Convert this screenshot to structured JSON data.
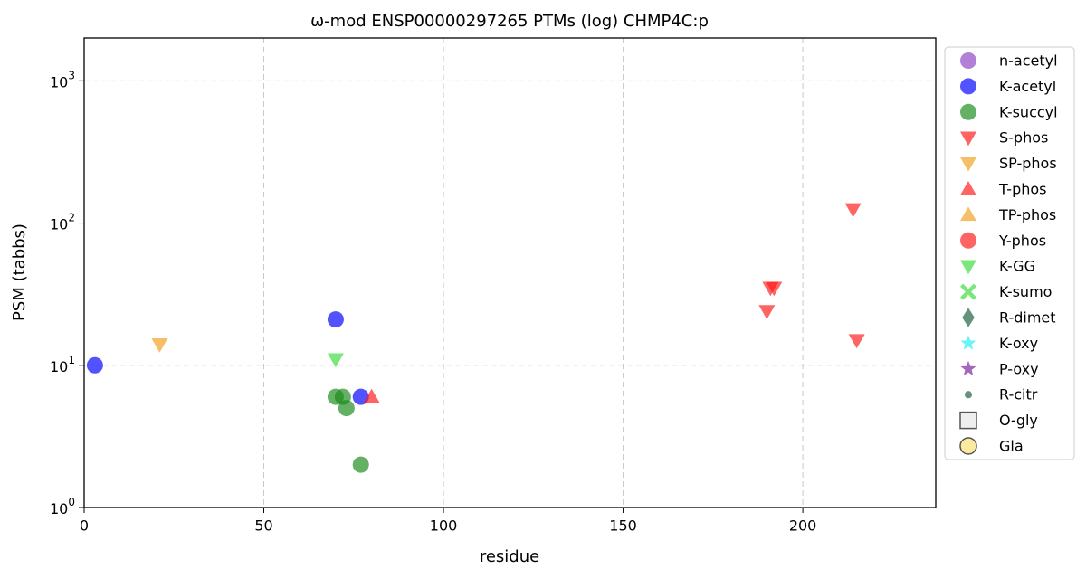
{
  "chart_data": {
    "type": "scatter",
    "title": "ω-mod ENSP00000297265 PTMs (log) CHMP4C:p",
    "x_label": "residue",
    "y_label": "PSM (tabbs)",
    "y_scale": "log",
    "grid": true,
    "legend": "outside-right",
    "xlim": [
      0,
      237
    ],
    "xticks": [
      0,
      50,
      100,
      150,
      200
    ],
    "ylim": [
      1,
      2000
    ],
    "yticks": [
      {
        "value": 1,
        "label": "10",
        "exponent": "0"
      },
      {
        "value": 10,
        "label": "10",
        "exponent": "1"
      },
      {
        "value": 100,
        "label": "10",
        "exponent": "2"
      },
      {
        "value": 1000,
        "label": "10",
        "exponent": "3"
      }
    ],
    "series": [
      {
        "name": "n-acetyl",
        "color": "#8e44c4",
        "marker": "circle",
        "x": [],
        "values": []
      },
      {
        "name": "K-acetyl",
        "color": "#0000ff",
        "marker": "circle",
        "x": [
          3,
          70,
          77
        ],
        "values": [
          10,
          21,
          6
        ]
      },
      {
        "name": "K-succyl",
        "color": "#1a8a1a",
        "marker": "circle",
        "x": [
          70,
          72,
          73,
          77
        ],
        "values": [
          6,
          6,
          5,
          2
        ]
      },
      {
        "name": "S-phos",
        "color": "#ff1a1a",
        "marker": "triangle-down",
        "x": [
          190,
          191,
          192,
          214,
          215
        ],
        "values": [
          24,
          35,
          35,
          125,
          15
        ]
      },
      {
        "name": "SP-phos",
        "color": "#f0a020",
        "marker": "triangle-down",
        "x": [
          21
        ],
        "values": [
          14
        ]
      },
      {
        "name": "T-phos",
        "color": "#ff1a1a",
        "marker": "triangle-up",
        "x": [
          80
        ],
        "values": [
          6
        ]
      },
      {
        "name": "TP-phos",
        "color": "#f0a020",
        "marker": "triangle-up",
        "x": [],
        "values": []
      },
      {
        "name": "Y-phos",
        "color": "#ff1a1a",
        "marker": "circle",
        "x": [],
        "values": []
      },
      {
        "name": "K-GG",
        "color": "#3ddc3d",
        "marker": "triangle-down",
        "x": [
          70
        ],
        "values": [
          11
        ]
      },
      {
        "name": "K-sumo",
        "color": "#3ddc3d",
        "marker": "x",
        "x": [],
        "values": []
      },
      {
        "name": "R-dimet",
        "color": "#1e5e3e",
        "marker": "diamond",
        "x": [],
        "values": []
      },
      {
        "name": "K-oxy",
        "color": "#20f0f0",
        "marker": "star",
        "x": [],
        "values": []
      },
      {
        "name": "P-oxy",
        "color": "#7a1f9a",
        "marker": "star",
        "x": [],
        "values": []
      },
      {
        "name": "R-citr",
        "color": "#1e5e3e",
        "marker": "small-circle",
        "x": [],
        "values": []
      },
      {
        "name": "O-gly",
        "color": "#eeeeee",
        "marker": "square",
        "x": [],
        "values": []
      },
      {
        "name": "Gla",
        "color": "#fbe9a0",
        "marker": "circle-edge",
        "x": [],
        "values": []
      }
    ]
  }
}
